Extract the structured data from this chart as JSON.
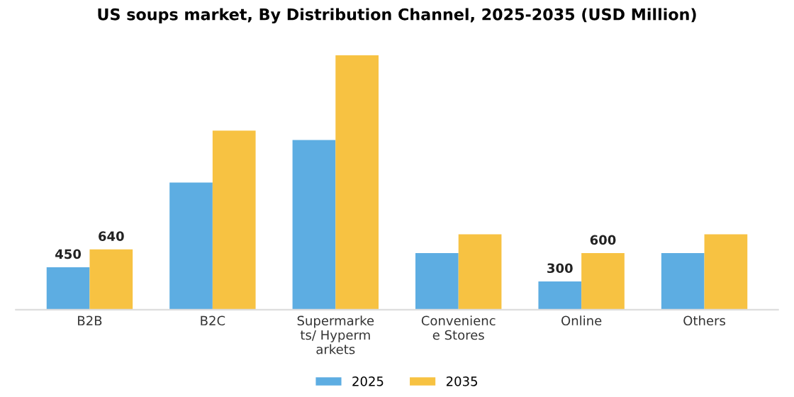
{
  "chart_data": {
    "type": "bar",
    "title": "US soups market, By Distribution Channel, 2025-2035 (USD Million)",
    "categories": [
      "B2B",
      "B2C",
      "Supermarke\nts/ Hyperm\narkets",
      "Convenienc\ne Stores",
      "Online",
      "Others"
    ],
    "series": [
      {
        "name": "2025",
        "color": "#5dade2",
        "values": [
          450,
          1350,
          1800,
          600,
          300,
          600
        ],
        "value_labels": [
          "450",
          null,
          null,
          null,
          "300",
          null
        ]
      },
      {
        "name": "2035",
        "color": "#f7c242",
        "values": [
          640,
          1900,
          2700,
          800,
          600,
          800
        ],
        "value_labels": [
          "640",
          null,
          null,
          null,
          "600",
          null
        ]
      }
    ],
    "legend": "bottom"
  }
}
